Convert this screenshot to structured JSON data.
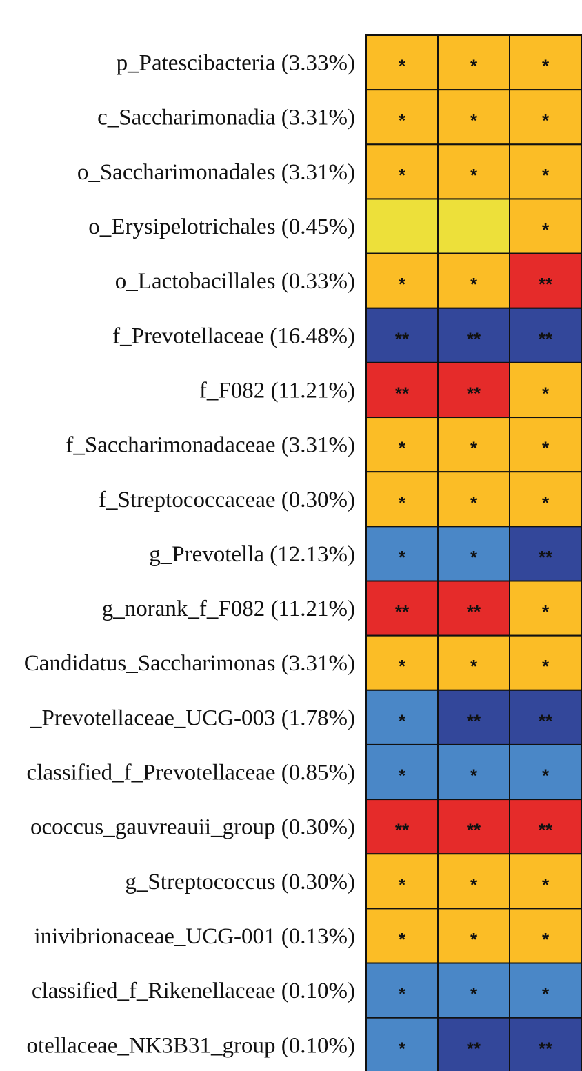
{
  "chart_data": {
    "type": "heatmap",
    "title": "",
    "columns": 3,
    "legend": {
      "yellow": "#EDE03A",
      "orange": "#FBBD26",
      "red": "#E52B2A",
      "light_blue": "#4A87C7",
      "dark_blue": "#33479A"
    },
    "rows": [
      {
        "label": "p_Patescibacteria (3.33%)",
        "cells": [
          {
            "color": "orange",
            "mark": "*"
          },
          {
            "color": "orange",
            "mark": "*"
          },
          {
            "color": "orange",
            "mark": "*"
          }
        ]
      },
      {
        "label": "c_Saccharimonadia (3.31%)",
        "cells": [
          {
            "color": "orange",
            "mark": "*"
          },
          {
            "color": "orange",
            "mark": "*"
          },
          {
            "color": "orange",
            "mark": "*"
          }
        ]
      },
      {
        "label": "o_Saccharimonadales (3.31%)",
        "cells": [
          {
            "color": "orange",
            "mark": "*"
          },
          {
            "color": "orange",
            "mark": "*"
          },
          {
            "color": "orange",
            "mark": "*"
          }
        ]
      },
      {
        "label": "o_Erysipelotrichales (0.45%)",
        "cells": [
          {
            "color": "yellow",
            "mark": ""
          },
          {
            "color": "yellow",
            "mark": ""
          },
          {
            "color": "orange",
            "mark": "*"
          }
        ]
      },
      {
        "label": "o_Lactobacillales (0.33%)",
        "cells": [
          {
            "color": "orange",
            "mark": "*"
          },
          {
            "color": "orange",
            "mark": "*"
          },
          {
            "color": "red",
            "mark": "**"
          }
        ]
      },
      {
        "label": "f_Prevotellaceae (16.48%)",
        "cells": [
          {
            "color": "dark_blue",
            "mark": "**"
          },
          {
            "color": "dark_blue",
            "mark": "**"
          },
          {
            "color": "dark_blue",
            "mark": "**"
          }
        ]
      },
      {
        "label": "f_F082 (11.21%)",
        "cells": [
          {
            "color": "red",
            "mark": "**"
          },
          {
            "color": "red",
            "mark": "**"
          },
          {
            "color": "orange",
            "mark": "*"
          }
        ]
      },
      {
        "label": "f_Saccharimonadaceae (3.31%)",
        "cells": [
          {
            "color": "orange",
            "mark": "*"
          },
          {
            "color": "orange",
            "mark": "*"
          },
          {
            "color": "orange",
            "mark": "*"
          }
        ]
      },
      {
        "label": "f_Streptococcaceae (0.30%)",
        "cells": [
          {
            "color": "orange",
            "mark": "*"
          },
          {
            "color": "orange",
            "mark": "*"
          },
          {
            "color": "orange",
            "mark": "*"
          }
        ]
      },
      {
        "label": "g_Prevotella (12.13%)",
        "cells": [
          {
            "color": "light_blue",
            "mark": "*"
          },
          {
            "color": "light_blue",
            "mark": "*"
          },
          {
            "color": "dark_blue",
            "mark": "**"
          }
        ]
      },
      {
        "label": "g_norank_f_F082 (11.21%)",
        "cells": [
          {
            "color": "red",
            "mark": "**"
          },
          {
            "color": "red",
            "mark": "**"
          },
          {
            "color": "orange",
            "mark": "*"
          }
        ]
      },
      {
        "label": "Candidatus_Saccharimonas (3.31%)",
        "cells": [
          {
            "color": "orange",
            "mark": "*"
          },
          {
            "color": "orange",
            "mark": "*"
          },
          {
            "color": "orange",
            "mark": "*"
          }
        ]
      },
      {
        "label": "_Prevotellaceae_UCG-003 (1.78%)",
        "cells": [
          {
            "color": "light_blue",
            "mark": "*"
          },
          {
            "color": "dark_blue",
            "mark": "**"
          },
          {
            "color": "dark_blue",
            "mark": "**"
          }
        ]
      },
      {
        "label": "classified_f_Prevotellaceae (0.85%)",
        "cells": [
          {
            "color": "light_blue",
            "mark": "*"
          },
          {
            "color": "light_blue",
            "mark": "*"
          },
          {
            "color": "light_blue",
            "mark": "*"
          }
        ]
      },
      {
        "label": "ococcus_gauvreauii_group (0.30%)",
        "cells": [
          {
            "color": "red",
            "mark": "**"
          },
          {
            "color": "red",
            "mark": "**"
          },
          {
            "color": "red",
            "mark": "**"
          }
        ]
      },
      {
        "label": "g_Streptococcus (0.30%)",
        "cells": [
          {
            "color": "orange",
            "mark": "*"
          },
          {
            "color": "orange",
            "mark": "*"
          },
          {
            "color": "orange",
            "mark": "*"
          }
        ]
      },
      {
        "label": "inivibrionaceae_UCG-001 (0.13%)",
        "cells": [
          {
            "color": "orange",
            "mark": "*"
          },
          {
            "color": "orange",
            "mark": "*"
          },
          {
            "color": "orange",
            "mark": "*"
          }
        ]
      },
      {
        "label": "classified_f_Rikenellaceae (0.10%)",
        "cells": [
          {
            "color": "light_blue",
            "mark": "*"
          },
          {
            "color": "light_blue",
            "mark": "*"
          },
          {
            "color": "light_blue",
            "mark": "*"
          }
        ]
      },
      {
        "label": "otellaceae_NK3B31_group (0.10%)",
        "cells": [
          {
            "color": "light_blue",
            "mark": "*"
          },
          {
            "color": "dark_blue",
            "mark": "**"
          },
          {
            "color": "dark_blue",
            "mark": "**"
          }
        ]
      }
    ]
  }
}
